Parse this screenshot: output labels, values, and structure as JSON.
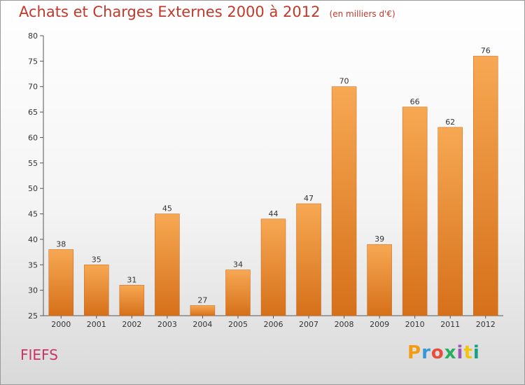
{
  "title": "Achats et Charges Externes 2000 à 2012",
  "unit_label": "(en milliers d'€)",
  "location": "FIEFS",
  "logo_text": "Proxiti",
  "colors": {
    "bar_light": "#f7a853",
    "bar_dark": "#d6701a",
    "title": "#c0392b",
    "location": "#cc3366"
  },
  "chart_data": {
    "type": "bar",
    "categories": [
      "2000",
      "2001",
      "2002",
      "2003",
      "2004",
      "2005",
      "2006",
      "2007",
      "2008",
      "2009",
      "2010",
      "2011",
      "2012"
    ],
    "values": [
      38,
      35,
      31,
      45,
      27,
      34,
      44,
      47,
      70,
      39,
      66,
      62,
      76
    ],
    "ylim": [
      25,
      80
    ],
    "yticks": [
      25,
      30,
      35,
      40,
      45,
      50,
      55,
      60,
      65,
      70,
      75,
      80
    ],
    "grid": false,
    "xlabel": "",
    "ylabel": ""
  }
}
